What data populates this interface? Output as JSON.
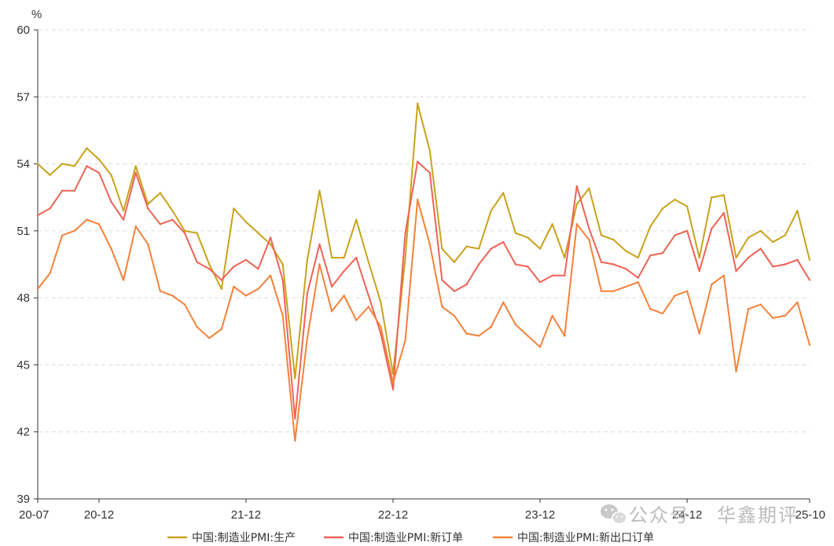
{
  "chart_data": {
    "type": "line",
    "y_unit": "%",
    "ylim": [
      39,
      60
    ],
    "y_ticks": [
      39,
      42,
      45,
      48,
      51,
      54,
      57,
      60
    ],
    "grid": true,
    "legend_position": "bottom",
    "x": [
      "20-07",
      "20-08",
      "20-09",
      "20-10",
      "20-11",
      "20-12",
      "21-01",
      "21-02",
      "21-03",
      "21-04",
      "21-05",
      "21-06",
      "21-07",
      "21-08",
      "21-09",
      "21-10",
      "21-11",
      "21-12",
      "22-01",
      "22-02",
      "22-03",
      "22-04",
      "22-05",
      "22-06",
      "22-07",
      "22-08",
      "22-09",
      "22-10",
      "22-11",
      "22-12",
      "23-01",
      "23-02",
      "23-03",
      "23-04",
      "23-05",
      "23-06",
      "23-07",
      "23-08",
      "23-09",
      "23-10",
      "23-11",
      "23-12",
      "24-01",
      "24-02",
      "24-03",
      "24-04",
      "24-05",
      "24-06",
      "24-07",
      "24-08",
      "24-09",
      "24-10",
      "24-11",
      "24-12",
      "25-01",
      "25-02",
      "25-03",
      "25-04",
      "25-05",
      "25-06",
      "25-07",
      "25-08",
      "25-09",
      "25-10"
    ],
    "x_tick_labels": [
      "20-07",
      "20-12",
      "21-12",
      "22-12",
      "23-12",
      "24-12",
      "25-10"
    ],
    "series": [
      {
        "name": "中国:制造业PMI:生产",
        "color": "#c9a21a",
        "values": [
          54.0,
          53.5,
          54.0,
          53.9,
          54.7,
          54.2,
          53.5,
          51.9,
          53.9,
          52.2,
          52.7,
          51.9,
          51.0,
          50.9,
          49.5,
          48.4,
          52.0,
          51.4,
          50.9,
          50.4,
          49.5,
          44.4,
          49.7,
          52.8,
          49.8,
          49.8,
          51.5,
          49.6,
          47.8,
          44.6,
          49.8,
          56.7,
          54.6,
          50.2,
          49.6,
          50.3,
          50.2,
          51.9,
          52.7,
          50.9,
          50.7,
          50.2,
          51.3,
          49.8,
          52.2,
          52.9,
          50.8,
          50.6,
          50.1,
          49.8,
          51.2,
          52.0,
          52.4,
          52.1,
          49.8,
          52.5,
          52.6,
          49.8,
          50.7,
          51.0,
          50.5,
          50.8,
          51.9,
          49.7
        ]
      },
      {
        "name": "中国:制造业PMI:新订单",
        "color": "#ee6355",
        "values": [
          51.7,
          52.0,
          52.8,
          52.8,
          53.9,
          53.6,
          52.3,
          51.5,
          53.6,
          52.0,
          51.3,
          51.5,
          50.9,
          49.6,
          49.3,
          48.8,
          49.4,
          49.7,
          49.3,
          50.7,
          48.8,
          42.6,
          48.2,
          50.4,
          48.5,
          49.2,
          49.8,
          48.1,
          46.4,
          43.9,
          50.9,
          54.1,
          53.6,
          48.8,
          48.3,
          48.6,
          49.5,
          50.2,
          50.5,
          49.5,
          49.4,
          48.7,
          49.0,
          49.0,
          53.0,
          51.1,
          49.6,
          49.5,
          49.3,
          48.9,
          49.9,
          50.0,
          50.8,
          51.0,
          49.2,
          51.1,
          51.8,
          49.2,
          49.8,
          50.2,
          49.4,
          49.5,
          49.7,
          48.8
        ]
      },
      {
        "name": "中国:制造业PMI:新出口订单",
        "color": "#f5813a",
        "values": [
          48.4,
          49.1,
          50.8,
          51.0,
          51.5,
          51.3,
          50.2,
          48.8,
          51.2,
          50.4,
          48.3,
          48.1,
          47.7,
          46.7,
          46.2,
          46.6,
          48.5,
          48.1,
          48.4,
          49.0,
          47.2,
          41.6,
          46.2,
          49.5,
          47.4,
          48.1,
          47.0,
          47.6,
          46.7,
          44.2,
          46.1,
          52.4,
          50.4,
          47.6,
          47.2,
          46.4,
          46.3,
          46.7,
          47.8,
          46.8,
          46.3,
          45.8,
          47.2,
          46.3,
          51.3,
          50.6,
          48.3,
          48.3,
          48.5,
          48.7,
          47.5,
          47.3,
          48.1,
          48.3,
          46.4,
          48.6,
          49.0,
          44.7,
          47.5,
          47.7,
          47.1,
          47.2,
          47.8,
          45.9
        ]
      }
    ]
  },
  "watermark": {
    "brand": "公众号",
    "separator": "·",
    "name": "华鑫期评"
  }
}
